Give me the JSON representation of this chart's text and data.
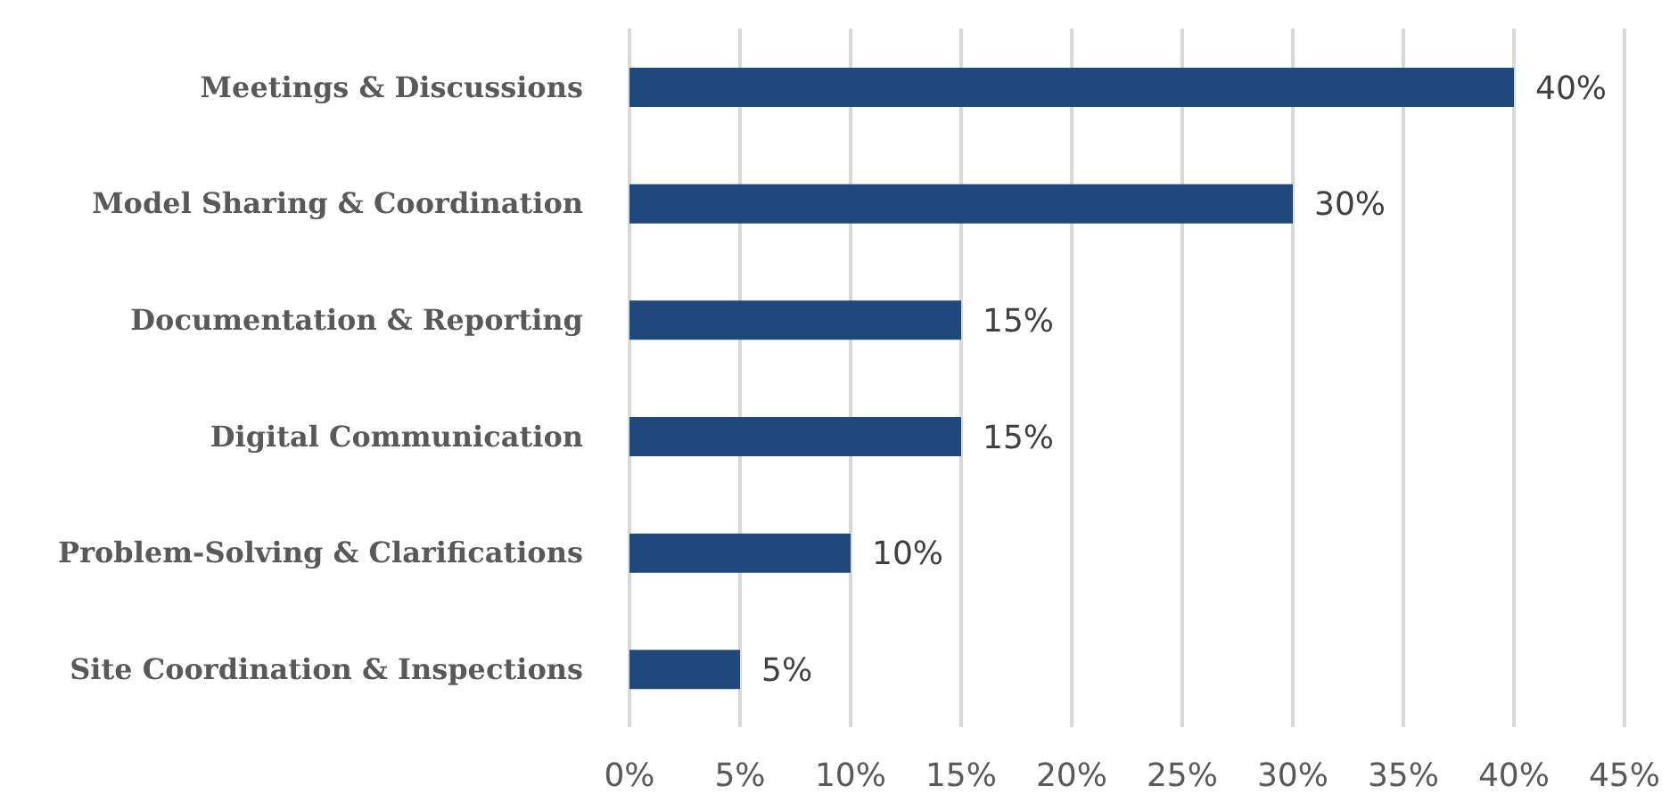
{
  "chart_data": {
    "type": "bar",
    "orientation": "horizontal",
    "categories": [
      "Meetings & Discussions",
      "Model Sharing & Coordination",
      "Documentation & Reporting",
      "Digital Communication",
      "Problem-Solving & Clarifications",
      "Site Coordination & Inspections"
    ],
    "values": [
      40,
      30,
      15,
      15,
      10,
      5
    ],
    "value_labels": [
      "40%",
      "30%",
      "15%",
      "15%",
      "10%",
      "5%"
    ],
    "color": "#1f497d",
    "xlim": [
      0,
      45
    ],
    "xticks": [
      {
        "value": 0,
        "label": "0%"
      },
      {
        "value": 5,
        "label": "5%"
      },
      {
        "value": 10,
        "label": "10%"
      },
      {
        "value": 15,
        "label": "15%"
      },
      {
        "value": 20,
        "label": "20%"
      },
      {
        "value": 25,
        "label": "25%"
      },
      {
        "value": 30,
        "label": "30%"
      },
      {
        "value": 35,
        "label": "35%"
      },
      {
        "value": 40,
        "label": "40%"
      },
      {
        "value": 45,
        "label": "45%"
      }
    ],
    "grid": "x"
  }
}
